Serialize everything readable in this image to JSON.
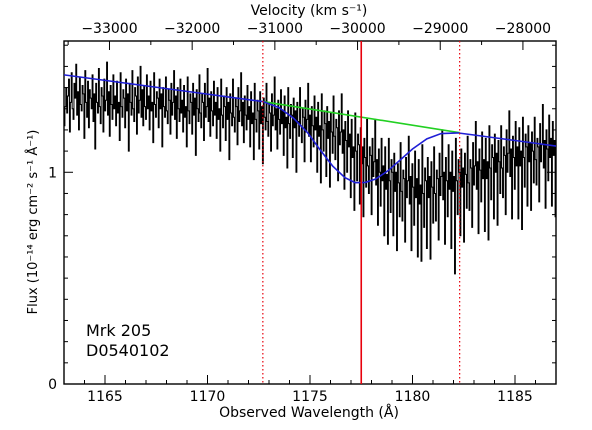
{
  "chart_data": {
    "type": "line",
    "xlabel": "Observed Wavelength (Å)",
    "ylabel": "Flux (10⁻¹⁴ erg cm⁻² s⁻¹ Å⁻¹)",
    "top_axis_label": "Velocity (km s⁻¹)",
    "xlim": [
      1163,
      1187
    ],
    "ylim": [
      0,
      1.62
    ],
    "vlim": [
      -33550,
      -27600
    ],
    "x_ticks": [
      1165,
      1170,
      1175,
      1180,
      1185
    ],
    "x_tick_labels": [
      "1165",
      "1170",
      "1175",
      "1180",
      "1185"
    ],
    "y_ticks": [
      0,
      1
    ],
    "y_tick_labels": [
      "0",
      "1"
    ],
    "v_ticks": [
      -33000,
      -32000,
      -31000,
      -30000,
      -29000,
      -28000
    ],
    "v_tick_labels": [
      "−33000",
      "−32000",
      "−31000",
      "−30000",
      "−29000",
      "−28000"
    ],
    "annotation": [
      "Mrk 205",
      "D0540102"
    ],
    "vlines": [
      {
        "x": 1172.7,
        "style": "dotted",
        "color": "#e8000b"
      },
      {
        "x": 1177.5,
        "style": "solid",
        "color": "#e8000b"
      },
      {
        "x": 1182.3,
        "style": "dotted",
        "color": "#e8000b"
      }
    ],
    "series": [
      {
        "color": "#000000",
        "style": "step",
        "x_start": 1163,
        "x_end": 1187,
        "values": [
          1.22,
          1.31,
          1.4,
          1.28,
          1.36,
          1.44,
          1.19,
          1.33,
          1.47,
          1.3,
          1.25,
          1.42,
          1.35,
          1.51,
          1.27,
          1.38,
          1.2,
          1.45,
          1.32,
          1.29,
          1.41,
          1.37,
          1.16,
          1.48,
          1.33,
          1.26,
          1.43,
          1.21,
          1.39,
          1.35,
          1.3,
          1.46,
          1.24,
          1.37,
          1.11,
          1.42,
          1.33,
          1.28,
          1.49,
          1.31,
          1.23,
          1.4,
          1.36,
          1.19,
          1.44,
          1.29,
          1.34,
          1.52,
          1.27,
          1.38,
          1.17,
          1.41,
          1.32,
          1.25,
          1.46,
          1.3,
          1.36,
          1.22,
          1.43,
          1.28,
          1.33,
          1.15,
          1.47,
          1.31,
          1.26,
          1.39,
          1.35,
          1.21,
          1.44,
          1.29,
          1.37,
          1.1,
          1.42,
          1.33,
          1.27,
          1.48,
          1.3,
          1.24,
          1.4,
          1.36,
          1.18,
          1.45,
          1.28,
          1.34,
          1.5,
          1.26,
          1.39,
          1.22,
          1.41,
          1.31,
          1.25,
          1.46,
          1.3,
          1.36,
          1.2,
          1.43,
          1.29,
          1.33,
          1.14,
          1.47,
          1.32,
          1.26,
          1.38,
          1.35,
          1.21,
          1.44,
          1.3,
          1.37,
          1.12,
          1.4,
          1.31,
          1.26,
          1.45,
          1.29,
          1.23,
          1.39,
          1.34,
          1.18,
          1.42,
          1.27,
          1.33,
          1.48,
          1.25,
          1.36,
          1.16,
          1.4,
          1.3,
          1.24,
          1.44,
          1.28,
          1.34,
          1.19,
          1.41,
          1.26,
          1.31,
          1.12,
          1.45,
          1.29,
          1.23,
          1.37,
          1.33,
          1.18,
          1.42,
          1.27,
          1.35,
          1.08,
          1.39,
          1.3,
          1.24,
          1.46,
          1.28,
          1.21,
          1.37,
          1.33,
          1.15,
          1.42,
          1.26,
          1.31,
          1.49,
          1.24,
          1.35,
          1.17,
          1.38,
          1.29,
          1.22,
          1.43,
          1.27,
          1.33,
          1.16,
          1.4,
          1.25,
          1.3,
          1.1,
          1.44,
          1.27,
          1.21,
          1.36,
          1.31,
          1.15,
          1.4,
          1.25,
          1.33,
          1.06,
          1.37,
          1.28,
          1.22,
          1.44,
          1.26,
          1.19,
          1.35,
          1.31,
          1.13,
          1.4,
          1.24,
          1.29,
          1.47,
          1.22,
          1.33,
          1.14,
          1.36,
          1.27,
          1.2,
          1.41,
          1.25,
          1.31,
          1.12,
          1.38,
          1.23,
          1.28,
          1.06,
          1.42,
          1.25,
          1.19,
          1.34,
          1.29,
          1.11,
          1.38,
          1.23,
          1.31,
          1.04,
          1.35,
          1.26,
          1.2,
          1.42,
          1.24,
          1.17,
          1.33,
          1.28,
          1.1,
          1.37,
          1.22,
          1.27,
          1.45,
          1.2,
          1.3,
          1.11,
          1.34,
          1.25,
          1.18,
          1.39,
          1.23,
          1.29,
          1.08,
          1.36,
          1.21,
          1.26,
          1.02,
          1.4,
          1.23,
          1.16,
          1.32,
          1.27,
          1.07,
          1.35,
          1.21,
          1.29,
          1.0,
          1.33,
          1.24,
          1.17,
          1.4,
          1.22,
          1.14,
          1.3,
          1.26,
          1.05,
          1.34,
          1.19,
          1.25,
          1.42,
          1.17,
          1.27,
          1.05,
          1.31,
          1.22,
          1.12,
          1.36,
          1.2,
          1.26,
          1.0,
          1.33,
          1.17,
          1.22,
          0.95,
          1.37,
          1.2,
          1.1,
          1.29,
          1.23,
          0.98,
          1.31,
          1.16,
          1.24,
          0.93,
          1.28,
          1.19,
          1.09,
          1.36,
          1.17,
          1.06,
          1.25,
          1.21,
          0.96,
          1.29,
          1.13,
          1.19,
          1.37,
          1.09,
          1.2,
          0.92,
          1.24,
          1.15,
          1.0,
          1.29,
          1.12,
          1.18,
          0.88,
          1.25,
          1.07,
          1.12,
          0.82,
          1.28,
          1.1,
          0.96,
          1.18,
          1.13,
          0.85,
          1.21,
          1.04,
          1.12,
          0.79,
          1.16,
          1.07,
          0.93,
          1.25,
          1.03,
          0.9,
          1.12,
          1.08,
          0.8,
          1.16,
          0.98,
          1.05,
          1.25,
          0.94,
          1.06,
          0.75,
          1.11,
          1.0,
          0.84,
          1.16,
          0.96,
          1.03,
          0.7,
          1.12,
          0.92,
          0.99,
          0.66,
          1.16,
          0.96,
          0.81,
          1.06,
          1.0,
          0.7,
          1.09,
          0.91,
          1.0,
          0.63,
          1.04,
          0.95,
          0.79,
          1.14,
          0.91,
          0.77,
          1.01,
          0.97,
          0.67,
          1.07,
          0.88,
          0.96,
          1.17,
          0.85,
          0.98,
          0.63,
          1.04,
          0.93,
          0.75,
          1.1,
          0.88,
          0.97,
          0.6,
          1.06,
          0.85,
          0.94,
          0.58,
          1.13,
          0.9,
          0.74,
          1.02,
          0.96,
          0.64,
          1.07,
          0.88,
          0.98,
          0.59,
          1.05,
          0.93,
          0.76,
          1.12,
          0.9,
          0.77,
          1.01,
          0.97,
          0.68,
          1.09,
          0.89,
          0.98,
          1.2,
          0.87,
          1.0,
          0.66,
          1.07,
          0.96,
          0.79,
          1.13,
          0.92,
          1.0,
          0.64,
          1.1,
          0.91,
          0.98,
          0.52,
          1.16,
          0.96,
          0.8,
          1.06,
          1.0,
          0.7,
          1.11,
          0.93,
          1.02,
          0.67,
          1.09,
          0.99,
          0.83,
          1.17,
          0.95,
          0.82,
          1.06,
          1.02,
          0.74,
          1.14,
          0.94,
          1.03,
          1.24,
          0.92,
          1.05,
          0.71,
          1.11,
          1.01,
          0.86,
          1.19,
          0.97,
          1.06,
          0.72,
          1.16,
          0.97,
          1.05,
          0.68,
          1.22,
          1.02,
          0.87,
          1.13,
          1.07,
          0.78,
          1.18,
          1.0,
          1.09,
          0.75,
          1.15,
          1.05,
          0.9,
          1.22,
          1.02,
          0.88,
          1.12,
          1.08,
          0.8,
          1.2,
          1.0,
          1.09,
          1.29,
          0.98,
          1.11,
          0.78,
          1.17,
          1.07,
          0.92,
          1.24,
          1.03,
          1.12,
          0.78,
          1.21,
          1.03,
          1.1,
          0.73,
          1.26,
          1.07,
          0.93,
          1.18,
          1.12,
          0.84,
          1.22,
          1.05,
          1.14,
          0.82,
          1.19,
          1.1,
          0.95,
          1.26,
          1.06,
          0.94,
          1.16,
          1.12,
          0.86,
          1.23,
          1.05,
          1.13,
          1.32,
          1.02,
          1.15,
          0.83,
          1.2,
          1.11,
          0.96,
          1.27,
          1.07,
          1.16,
          0.84,
          1.24,
          1.08,
          1.15,
          0.79
        ]
      },
      {
        "color": "#1f1fd6",
        "style": "line",
        "x": [
          1163.0,
          1164.0,
          1165.0,
          1166.0,
          1167.0,
          1168.0,
          1169.0,
          1170.0,
          1171.0,
          1172.0,
          1172.7,
          1173.5,
          1174.2,
          1174.9,
          1175.5,
          1176.1,
          1176.7,
          1177.2,
          1177.7,
          1178.2,
          1178.8,
          1179.4,
          1180.0,
          1180.7,
          1181.4,
          1182.2,
          1183.0,
          1184.0,
          1185.0,
          1186.0,
          1187.0
        ],
        "y": [
          1.46,
          1.447,
          1.434,
          1.421,
          1.408,
          1.395,
          1.382,
          1.369,
          1.356,
          1.343,
          1.334,
          1.305,
          1.255,
          1.185,
          1.105,
          1.03,
          0.975,
          0.951,
          0.952,
          0.968,
          1.007,
          1.058,
          1.11,
          1.158,
          1.183,
          1.186,
          1.176,
          1.163,
          1.15,
          1.137,
          1.124
        ]
      },
      {
        "color": "#22d022",
        "style": "line",
        "x": [
          1172.7,
          1182.3
        ],
        "y": [
          1.334,
          1.187
        ]
      }
    ]
  }
}
